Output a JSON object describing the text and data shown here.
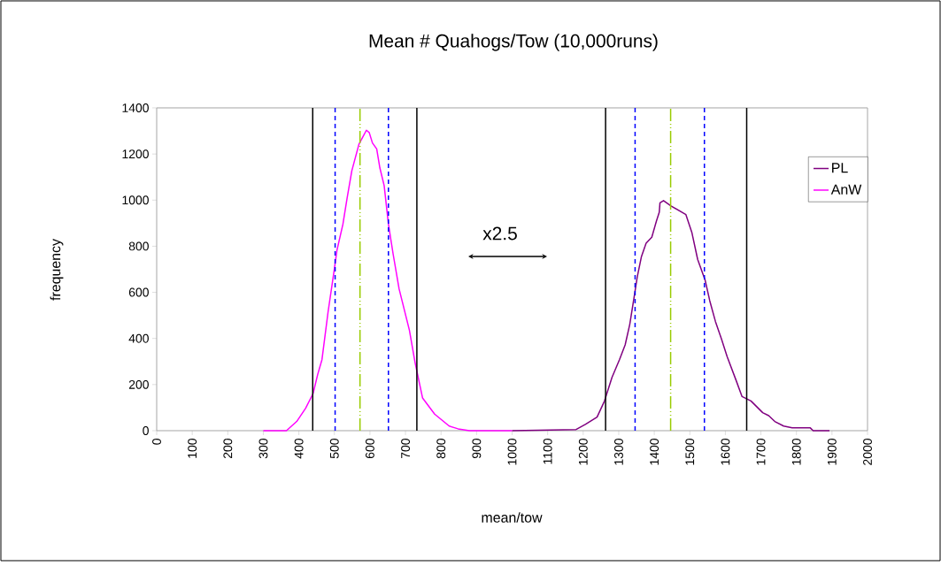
{
  "chart_data": {
    "type": "line",
    "title": "Mean # Quahogs/Tow (10,000runs)",
    "xlabel": "mean/tow",
    "ylabel": "frequency",
    "xlim": [
      0,
      2000
    ],
    "xticks": [
      0,
      100,
      200,
      300,
      400,
      500,
      600,
      700,
      800,
      900,
      1000,
      1100,
      1200,
      1300,
      1400,
      1500,
      1600,
      1700,
      1800,
      1900,
      2000
    ],
    "ylim": [
      0,
      1400
    ],
    "yticks": [
      0,
      200,
      400,
      600,
      800,
      1000,
      1200,
      1400
    ],
    "grid": false,
    "legend": "right",
    "marker": "none",
    "line_style": "solid",
    "series": [
      {
        "name": "PL",
        "color": "#800080",
        "x": [
          1000,
          1180,
          1206,
          1239,
          1260,
          1281,
          1302,
          1318,
          1331,
          1343,
          1352,
          1364,
          1377,
          1393,
          1406,
          1414,
          1416,
          1426,
          1447,
          1489,
          1506,
          1522,
          1543,
          1556,
          1572,
          1589,
          1605,
          1630,
          1647,
          1672,
          1705,
          1722,
          1739,
          1764,
          1788,
          1839,
          1847,
          1893
        ],
        "values": [
          0,
          5,
          27,
          59,
          129,
          231,
          308,
          372,
          461,
          577,
          666,
          756,
          813,
          839,
          909,
          947,
          988,
          998,
          975,
          937,
          858,
          743,
          653,
          564,
          474,
          398,
          321,
          219,
          148,
          129,
          78,
          65,
          40,
          20,
          12,
          12,
          0,
          0
        ]
      },
      {
        "name": "AnW",
        "color": "#ff00ff",
        "x": [
          300,
          365,
          394,
          419,
          440,
          453,
          465,
          482,
          499,
          507,
          524,
          536,
          549,
          569,
          590,
          598,
          607,
          619,
          628,
          640,
          652,
          665,
          682,
          711,
          727,
          748,
          782,
          823,
          848,
          880,
          1000
        ],
        "values": [
          0,
          0,
          40,
          97,
          161,
          244,
          308,
          513,
          692,
          781,
          896,
          1011,
          1127,
          1242,
          1303,
          1293,
          1248,
          1222,
          1139,
          1063,
          896,
          768,
          615,
          436,
          295,
          142,
          72,
          20,
          8,
          0,
          0
        ]
      }
    ],
    "ref_lines": [
      {
        "axis": "x",
        "value": 439,
        "color": "#000000",
        "line_style": "solid"
      },
      {
        "axis": "x",
        "value": 732,
        "color": "#000000",
        "line_style": "solid"
      },
      {
        "axis": "x",
        "value": 1263,
        "color": "#000000",
        "line_style": "solid"
      },
      {
        "axis": "x",
        "value": 1660,
        "color": "#000000",
        "line_style": "solid"
      },
      {
        "axis": "x",
        "value": 502,
        "color": "#0000ff",
        "line_style": "dashed"
      },
      {
        "axis": "x",
        "value": 652,
        "color": "#0000ff",
        "line_style": "dashed"
      },
      {
        "axis": "x",
        "value": 1346,
        "color": "#0000ff",
        "line_style": "dashed"
      },
      {
        "axis": "x",
        "value": 1541,
        "color": "#0000ff",
        "line_style": "dashed"
      },
      {
        "axis": "x",
        "value": 572,
        "color": "#99cc00",
        "line_style": "dashdot"
      },
      {
        "axis": "x",
        "value": 1446,
        "color": "#99cc00",
        "line_style": "dashdot"
      }
    ],
    "annotations": [
      "x2.5"
    ]
  }
}
